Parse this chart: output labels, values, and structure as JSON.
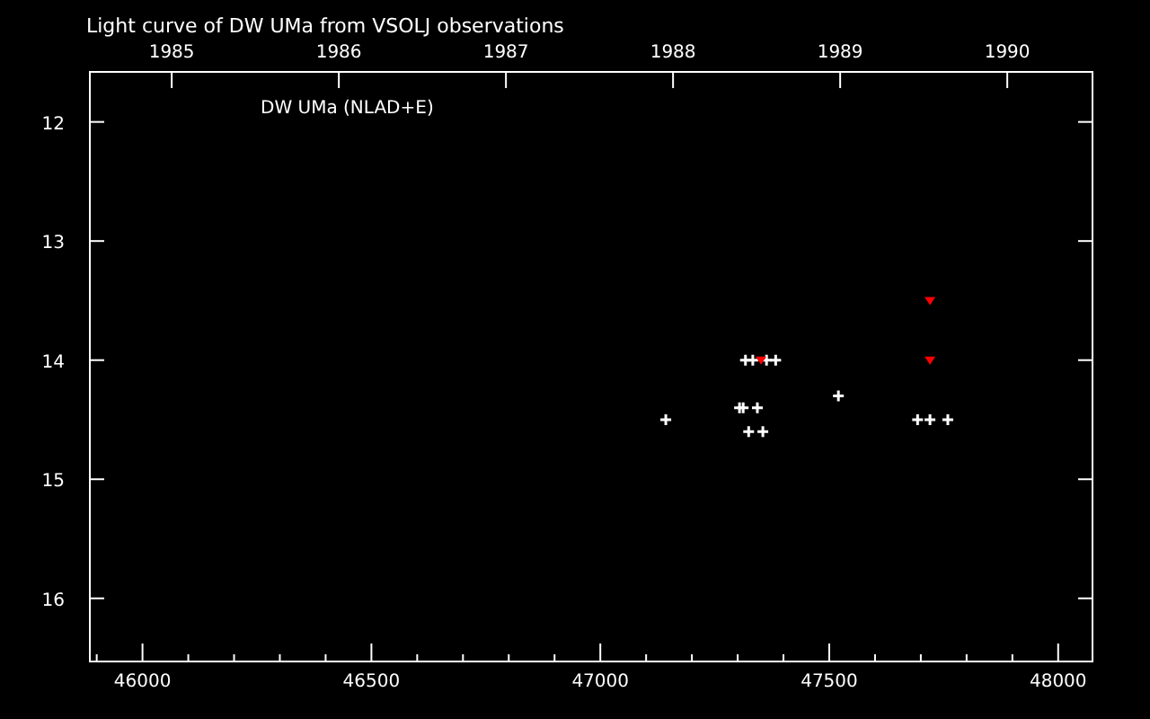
{
  "chart_data": {
    "type": "scatter",
    "title": "Light curve of DW UMa from VSOLJ observations",
    "annotations": [
      "DW UMa (NLAD+E)"
    ],
    "xlim": [
      45885,
      48075
    ],
    "ylim": [
      16.53,
      11.58
    ],
    "xticks": [
      {
        "value": 45900,
        "label": null
      },
      46000,
      {
        "value": 46100,
        "label": null
      },
      {
        "value": 46200,
        "label": null
      },
      {
        "value": 46300,
        "label": null
      },
      {
        "value": 46400,
        "label": null
      },
      46500,
      {
        "value": 46600,
        "label": null
      },
      {
        "value": 46700,
        "label": null
      },
      {
        "value": 46800,
        "label": null
      },
      {
        "value": 46900,
        "label": null
      },
      47000,
      {
        "value": 47100,
        "label": null
      },
      {
        "value": 47200,
        "label": null
      },
      {
        "value": 47300,
        "label": null
      },
      {
        "value": 47400,
        "label": null
      },
      47500,
      {
        "value": 47600,
        "label": null
      },
      {
        "value": 47700,
        "label": null
      },
      {
        "value": 47800,
        "label": null
      },
      {
        "value": 47900,
        "label": null
      },
      48000
    ],
    "x2lim": [
      1984.51,
      1990.51
    ],
    "x2ticks": [
      1985,
      1986,
      1987,
      1988,
      1989,
      1990
    ],
    "yticks": [
      12,
      13,
      14,
      15,
      16
    ],
    "grid": false,
    "series": [
      {
        "color": "#ffffff",
        "marker": "cross",
        "x": [
          47143,
          47317,
          47333,
          47363,
          47383,
          47304,
          47312,
          47343,
          47324,
          47355,
          47520,
          47693,
          47720,
          47759
        ],
        "values": [
          14.5,
          14.0,
          14.0,
          14.0,
          14.0,
          14.4,
          14.4,
          14.4,
          14.6,
          14.6,
          14.3,
          14.5,
          14.5,
          14.5
        ]
      },
      {
        "color": "#ff0000",
        "marker": "triangle",
        "x": [
          47351,
          47720,
          47720
        ],
        "values": [
          14.0,
          13.5,
          14.0
        ]
      }
    ]
  }
}
